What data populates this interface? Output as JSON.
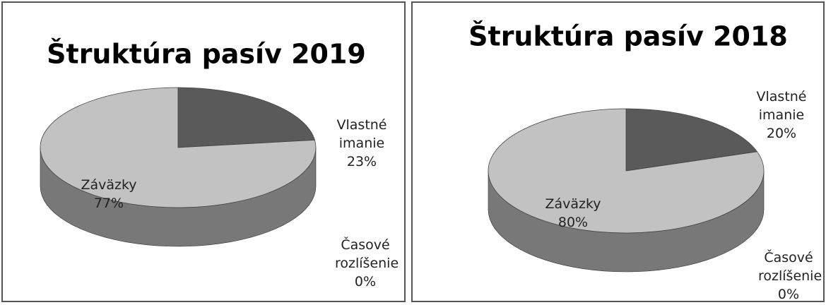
{
  "chart_data": [
    {
      "type": "pie",
      "title": "Štruktúra pasív 2019",
      "categories": [
        "Vlastné imanie",
        "Časové rozlíšenie",
        "Záväzky"
      ],
      "values": [
        23,
        0,
        77
      ],
      "value_labels": [
        "23%",
        "0%",
        "77%"
      ],
      "colors": [
        "#5a5a5a",
        "#9a9a9a",
        "#c2c2c2"
      ]
    },
    {
      "type": "pie",
      "title": "Štruktúra pasív 2018",
      "categories": [
        "Vlastné imanie",
        "Časové rozlíšenie",
        "Záväzky"
      ],
      "values": [
        20,
        0,
        80
      ],
      "value_labels": [
        "20%",
        "0%",
        "80%"
      ],
      "colors": [
        "#5a5a5a",
        "#9a9a9a",
        "#c2c2c2"
      ]
    }
  ]
}
